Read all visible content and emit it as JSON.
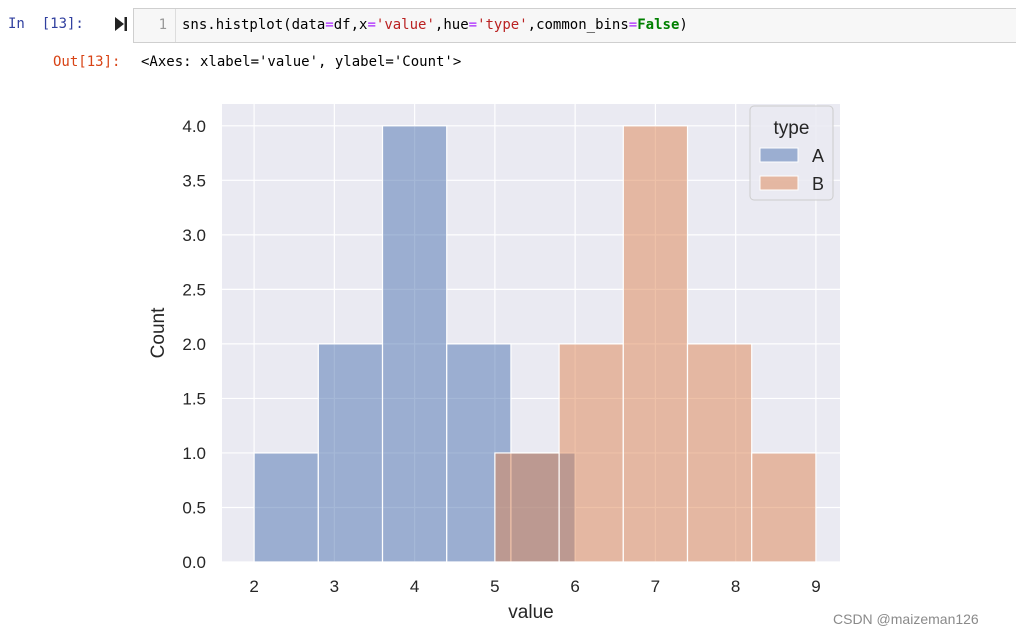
{
  "cell": {
    "in_prompt": "In  [13]:",
    "line_number": "1",
    "code": {
      "p1": "sns.histplot(data",
      "p2": "=",
      "p3": "df,x",
      "p4": "=",
      "p5": "'value'",
      "p6": ",hue",
      "p7": "=",
      "p8": "'type'",
      "p9": ",common_bins",
      "p10": "=",
      "p11": "False",
      "p12": ")"
    },
    "out_prompt": "Out[13]:",
    "output_text": "<Axes: xlabel='value', ylabel='Count'>"
  },
  "watermark": "CSDN @maizeman126",
  "chart_data": {
    "type": "bar",
    "subtype": "histogram",
    "xlabel": "value",
    "ylabel": "Count",
    "xlim": [
      1.6,
      9.3
    ],
    "ylim": [
      0,
      4.2
    ],
    "xticks": [
      "2",
      "3",
      "4",
      "5",
      "6",
      "7",
      "8",
      "9"
    ],
    "yticks": [
      "0.0",
      "0.5",
      "1.0",
      "1.5",
      "2.0",
      "2.5",
      "3.0",
      "3.5",
      "4.0"
    ],
    "grid": true,
    "legend": {
      "title": "type",
      "placement": "top-right"
    },
    "series": [
      {
        "name": "A",
        "color": "#4c72b0",
        "bins": [
          [
            2.0,
            2.8
          ],
          [
            2.8,
            3.6
          ],
          [
            3.6,
            4.4
          ],
          [
            4.4,
            5.2
          ],
          [
            5.2,
            6.0
          ]
        ],
        "values": [
          1,
          2,
          4,
          2,
          1
        ]
      },
      {
        "name": "B",
        "color": "#dd8452",
        "bins": [
          [
            5.0,
            5.8
          ],
          [
            5.8,
            6.6
          ],
          [
            6.6,
            7.4
          ],
          [
            7.4,
            8.2
          ],
          [
            8.2,
            9.0
          ]
        ],
        "values": [
          1,
          2,
          4,
          2,
          1
        ]
      }
    ]
  }
}
